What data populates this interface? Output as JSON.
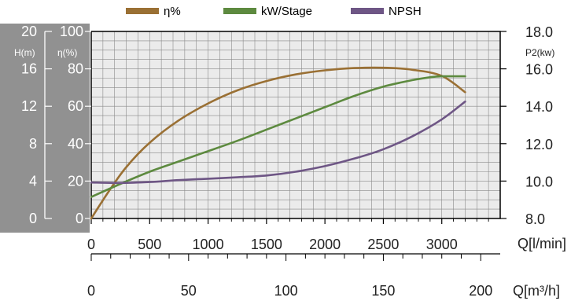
{
  "chart_data": {
    "type": "line",
    "legend": [
      {
        "name": "η%",
        "color": "#9a7034"
      },
      {
        "name": "kW/Stage",
        "color": "#5d8a3f"
      },
      {
        "name": "NPSH",
        "color": "#6e5685"
      }
    ],
    "legend_placement": "top-center",
    "grid": true,
    "x_axis": {
      "label": "Q[l/min]",
      "range": [
        0,
        3500
      ],
      "ticks": [
        "0",
        "500",
        "1000",
        "1500",
        "2000",
        "2500",
        "3000"
      ]
    },
    "x2_axis": {
      "label": "Q[m³/h]",
      "range": [
        0,
        210
      ],
      "ticks": [
        "0",
        "50",
        "100",
        "150",
        "200"
      ]
    },
    "y_h_axis": {
      "label": "H(m)",
      "range": [
        0,
        20
      ],
      "ticks": [
        "0",
        "4",
        "8",
        "12",
        "16",
        "20"
      ]
    },
    "y_eta_axis": {
      "label": "η(%)",
      "range": [
        0,
        100
      ],
      "ticks": [
        "0",
        "20",
        "40",
        "60",
        "80",
        "100"
      ]
    },
    "y_p2_axis": {
      "label": "P2(kw)",
      "range": [
        8.0,
        18.0
      ],
      "ticks": [
        "8.0",
        "10.0",
        "12.0",
        "14.0",
        "16.0",
        "18.0"
      ]
    },
    "series": [
      {
        "name": "η%",
        "axis": "eta",
        "color": "#9a7034",
        "x": [
          0,
          150,
          300,
          500,
          750,
          1000,
          1250,
          1500,
          1750,
          2000,
          2250,
          2500,
          2750,
          3000,
          3200
        ],
        "y": [
          0,
          14.5,
          27.5,
          40.5,
          52.5,
          61.5,
          68.5,
          73.5,
          77,
          79.2,
          80.4,
          80.6,
          79.5,
          76.2,
          67.5
        ]
      },
      {
        "name": "kW/Stage",
        "axis": "p2",
        "color": "#5d8a3f",
        "x": [
          0,
          250,
          500,
          750,
          1000,
          1250,
          1500,
          1750,
          2000,
          2250,
          2500,
          2750,
          2900,
          3000,
          3200
        ],
        "y": [
          9.15,
          9.85,
          10.5,
          11.05,
          11.6,
          12.15,
          12.75,
          13.35,
          13.95,
          14.55,
          15.05,
          15.4,
          15.55,
          15.6,
          15.6
        ]
      },
      {
        "name": "NPSH",
        "axis": "h",
        "color": "#6e5685",
        "x": [
          0,
          250,
          500,
          750,
          1000,
          1250,
          1500,
          1750,
          2000,
          2250,
          2500,
          2750,
          3000,
          3200
        ],
        "y": [
          3.85,
          3.8,
          3.9,
          4.1,
          4.25,
          4.4,
          4.6,
          5.0,
          5.6,
          6.4,
          7.4,
          8.8,
          10.6,
          12.5
        ]
      }
    ]
  }
}
